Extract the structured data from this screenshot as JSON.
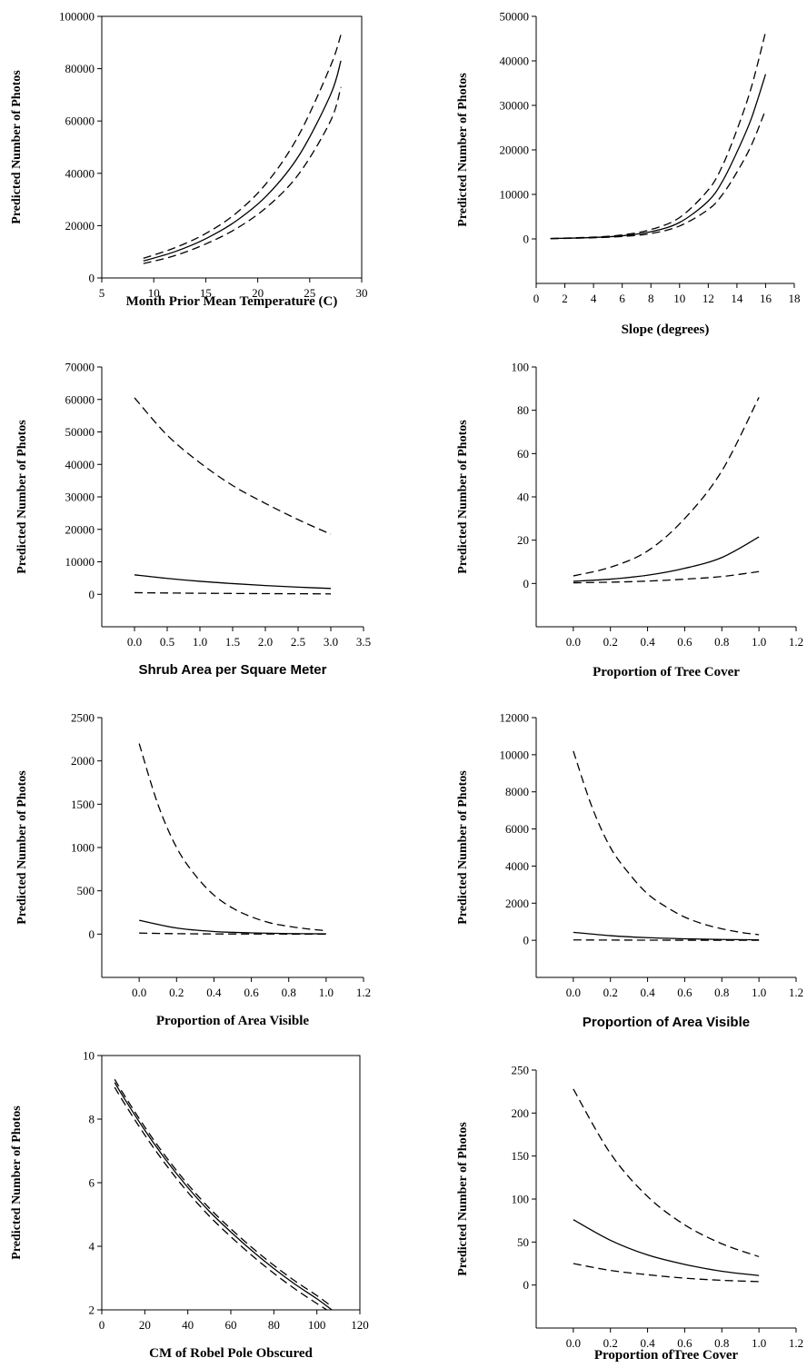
{
  "chart_data": [
    {
      "type": "line",
      "xlabel": "Month Prior Mean Temperature (C)",
      "ylabel": "Predicted Number of Photos",
      "xlim": [
        5,
        30
      ],
      "ylim": [
        0,
        100000
      ],
      "xticks": [
        "5",
        "10",
        "15",
        "20",
        "25",
        "30"
      ],
      "yticks": [
        "0",
        "20000",
        "40000",
        "60000",
        "80000",
        "100000"
      ],
      "frame": "box",
      "series": [
        {
          "style": "dashed",
          "x": [
            9,
            12,
            15,
            18,
            21,
            24,
            27,
            28
          ],
          "y": [
            7500,
            11500,
            17000,
            25000,
            37000,
            55000,
            81000,
            93000
          ]
        },
        {
          "style": "solid",
          "x": [
            9,
            12,
            15,
            18,
            21,
            24,
            27,
            28
          ],
          "y": [
            6500,
            10000,
            15000,
            22000,
            32000,
            47000,
            70000,
            83000
          ]
        },
        {
          "style": "dashed",
          "x": [
            9,
            12,
            15,
            18,
            21,
            24,
            27,
            28
          ],
          "y": [
            5500,
            8500,
            13000,
            19000,
            27500,
            40000,
            60000,
            73000
          ]
        }
      ]
    },
    {
      "type": "line",
      "xlabel": "Slope (degrees)",
      "ylabel": "Predicted Number of Photos",
      "xlim": [
        0,
        18
      ],
      "ylim": [
        -10000,
        50000
      ],
      "xticks": [
        "0",
        "2",
        "4",
        "6",
        "8",
        "10",
        "12",
        "14",
        "16",
        "18"
      ],
      "yticks": [
        "0",
        "10000",
        "20000",
        "30000",
        "40000",
        "50000"
      ],
      "frame": "axes",
      "series": [
        {
          "style": "dashed",
          "x": [
            1,
            4,
            6,
            8,
            10,
            12,
            13,
            14,
            15,
            16
          ],
          "y": [
            100,
            400,
            900,
            2100,
            4800,
            11000,
            16500,
            24500,
            34000,
            46500
          ]
        },
        {
          "style": "solid",
          "x": [
            1,
            4,
            6,
            8,
            10,
            12,
            13,
            14,
            15,
            16
          ],
          "y": [
            80,
            320,
            700,
            1600,
            3700,
            8500,
            13000,
            19500,
            27000,
            37000
          ]
        },
        {
          "style": "dashed",
          "x": [
            1,
            4,
            6,
            8,
            10,
            12,
            13,
            14,
            15,
            16
          ],
          "y": [
            60,
            250,
            550,
            1200,
            2900,
            6600,
            10000,
            15000,
            21000,
            29000
          ]
        }
      ]
    },
    {
      "type": "line",
      "xlabel": "Shrub Area per Square Meter",
      "ylabel": "Predicted Number of Photos",
      "xlim": [
        -0.5,
        3.5
      ],
      "ylim": [
        -10000,
        70000
      ],
      "xticks": [
        "0.0",
        "0.5",
        "1.0",
        "1.5",
        "2.0",
        "2.5",
        "3.0",
        "3.5"
      ],
      "yticks": [
        "0",
        "10000",
        "20000",
        "30000",
        "40000",
        "50000",
        "60000",
        "70000"
      ],
      "frame": "axes",
      "series": [
        {
          "style": "dashed",
          "x": [
            0,
            0.5,
            1,
            1.5,
            2,
            2.5,
            3
          ],
          "y": [
            60500,
            49000,
            40500,
            33500,
            28000,
            23000,
            18500
          ]
        },
        {
          "style": "solid",
          "x": [
            0,
            0.5,
            1,
            1.5,
            2,
            2.5,
            3
          ],
          "y": [
            6000,
            4900,
            4000,
            3300,
            2700,
            2200,
            1800
          ]
        },
        {
          "style": "dashed",
          "x": [
            0,
            0.5,
            1,
            1.5,
            2,
            2.5,
            3
          ],
          "y": [
            500,
            400,
            320,
            260,
            210,
            170,
            130
          ]
        }
      ]
    },
    {
      "type": "line",
      "xlabel": "Proportion of Tree Cover",
      "ylabel": "Predicted Number of Photos",
      "xlim": [
        -0.2,
        1.2
      ],
      "ylim": [
        -20,
        100
      ],
      "xticks": [
        "0.0",
        "0.2",
        "0.4",
        "0.6",
        "0.8",
        "1.0",
        "1.2"
      ],
      "yticks": [
        "0",
        "20",
        "40",
        "60",
        "80",
        "100"
      ],
      "frame": "axes",
      "series": [
        {
          "style": "dashed",
          "x": [
            0,
            0.2,
            0.4,
            0.6,
            0.8,
            1.0
          ],
          "y": [
            3.5,
            7.5,
            15,
            30,
            52,
            86
          ]
        },
        {
          "style": "solid",
          "x": [
            0,
            0.2,
            0.4,
            0.6,
            0.8,
            1.0
          ],
          "y": [
            1,
            2,
            3.8,
            7,
            12,
            21.5
          ]
        },
        {
          "style": "dashed",
          "x": [
            0,
            0.2,
            0.4,
            0.6,
            0.8,
            1.0
          ],
          "y": [
            0.3,
            0.6,
            1.1,
            2,
            3.2,
            5.5
          ]
        }
      ]
    },
    {
      "type": "line",
      "xlabel": "Proportion of Area Visible",
      "ylabel": "Predicted Number of Photos",
      "xlim": [
        -0.2,
        1.2
      ],
      "ylim": [
        -500,
        2500
      ],
      "xticks": [
        "0.0",
        "0.2",
        "0.4",
        "0.6",
        "0.8",
        "1.0",
        "1.2"
      ],
      "yticks": [
        "0",
        "500",
        "1000",
        "1500",
        "2000",
        "2500"
      ],
      "frame": "axes",
      "series": [
        {
          "style": "dashed",
          "x": [
            0,
            0.1,
            0.2,
            0.3,
            0.4,
            0.5,
            0.6,
            0.7,
            0.8,
            0.9,
            1.0
          ],
          "y": [
            2200,
            1500,
            1000,
            680,
            450,
            300,
            200,
            130,
            90,
            60,
            40
          ]
        },
        {
          "style": "solid",
          "x": [
            0,
            0.2,
            0.4,
            0.6,
            0.8,
            1.0
          ],
          "y": [
            160,
            70,
            30,
            14,
            6,
            3
          ]
        },
        {
          "style": "dashed",
          "x": [
            0,
            0.2,
            0.4,
            0.6,
            0.8,
            1.0
          ],
          "y": [
            12,
            5,
            2,
            1,
            0.5,
            0.2
          ]
        }
      ]
    },
    {
      "type": "line",
      "xlabel": "Proportion of Area Visible",
      "ylabel": "Predicted Number of Photos",
      "xlim": [
        -0.2,
        1.2
      ],
      "ylim": [
        -2000,
        12000
      ],
      "xticks": [
        "0.0",
        "0.2",
        "0.4",
        "0.6",
        "0.8",
        "1.0",
        "1.2"
      ],
      "yticks": [
        "0",
        "2000",
        "4000",
        "6000",
        "8000",
        "10000",
        "12000"
      ],
      "frame": "axes",
      "series": [
        {
          "style": "dashed",
          "x": [
            0,
            0.1,
            0.2,
            0.3,
            0.4,
            0.5,
            0.6,
            0.7,
            0.8,
            0.9,
            1.0
          ],
          "y": [
            10200,
            7200,
            5000,
            3600,
            2500,
            1800,
            1250,
            880,
            620,
            430,
            300
          ]
        },
        {
          "style": "solid",
          "x": [
            0,
            0.2,
            0.4,
            0.6,
            0.8,
            1.0
          ],
          "y": [
            430,
            250,
            140,
            80,
            45,
            25
          ]
        },
        {
          "style": "dashed",
          "x": [
            0,
            0.2,
            0.4,
            0.6,
            0.8,
            1.0
          ],
          "y": [
            20,
            12,
            7,
            4,
            2,
            1
          ]
        }
      ]
    },
    {
      "type": "line",
      "xlabel": "CM of Robel Pole Obscured",
      "ylabel": "Predicted Number of Photos",
      "xlim": [
        0,
        120
      ],
      "ylim": [
        2,
        10
      ],
      "xticks": [
        "0",
        "20",
        "40",
        "60",
        "80",
        "100",
        "120"
      ],
      "yticks": [
        "2",
        "4",
        "6",
        "8",
        "10"
      ],
      "frame": "box",
      "series": [
        {
          "style": "dashed",
          "x": [
            6,
            10,
            20,
            30,
            40,
            50,
            60,
            70,
            80,
            90,
            100,
            107
          ],
          "y": [
            9.25,
            8.8,
            7.75,
            6.8,
            5.95,
            5.2,
            4.55,
            3.95,
            3.4,
            2.9,
            2.45,
            2.1
          ]
        },
        {
          "style": "solid",
          "x": [
            6,
            10,
            20,
            30,
            40,
            50,
            60,
            70,
            80,
            90,
            100,
            107
          ],
          "y": [
            9.15,
            8.7,
            7.65,
            6.7,
            5.85,
            5.1,
            4.45,
            3.85,
            3.3,
            2.8,
            2.35,
            2.0
          ]
        },
        {
          "style": "dashed",
          "x": [
            6,
            10,
            20,
            30,
            40,
            50,
            60,
            70,
            80,
            90,
            100,
            107
          ],
          "y": [
            9.0,
            8.55,
            7.5,
            6.55,
            5.7,
            4.95,
            4.3,
            3.7,
            3.15,
            2.65,
            2.2,
            1.9
          ]
        }
      ]
    },
    {
      "type": "line",
      "xlabel": "Proportion ofTree Cover",
      "ylabel": "Predicted Number of Photos",
      "xlim": [
        -0.2,
        1.2
      ],
      "ylim": [
        -50,
        250
      ],
      "xticks": [
        "0.0",
        "0.2",
        "0.4",
        "0.6",
        "0.8",
        "1.0",
        "1.2"
      ],
      "yticks": [
        "0",
        "50",
        "100",
        "150",
        "200",
        "250"
      ],
      "frame": "axes",
      "series": [
        {
          "style": "dashed",
          "x": [
            0,
            0.2,
            0.4,
            0.6,
            0.8,
            1.0
          ],
          "y": [
            228,
            153,
            103,
            70,
            48,
            33
          ]
        },
        {
          "style": "solid",
          "x": [
            0,
            0.2,
            0.4,
            0.6,
            0.8,
            1.0
          ],
          "y": [
            76,
            52,
            35,
            24,
            16,
            11
          ]
        },
        {
          "style": "dashed",
          "x": [
            0,
            0.2,
            0.4,
            0.6,
            0.8,
            1.0
          ],
          "y": [
            25,
            17,
            12,
            8,
            5.5,
            4
          ]
        }
      ]
    }
  ]
}
